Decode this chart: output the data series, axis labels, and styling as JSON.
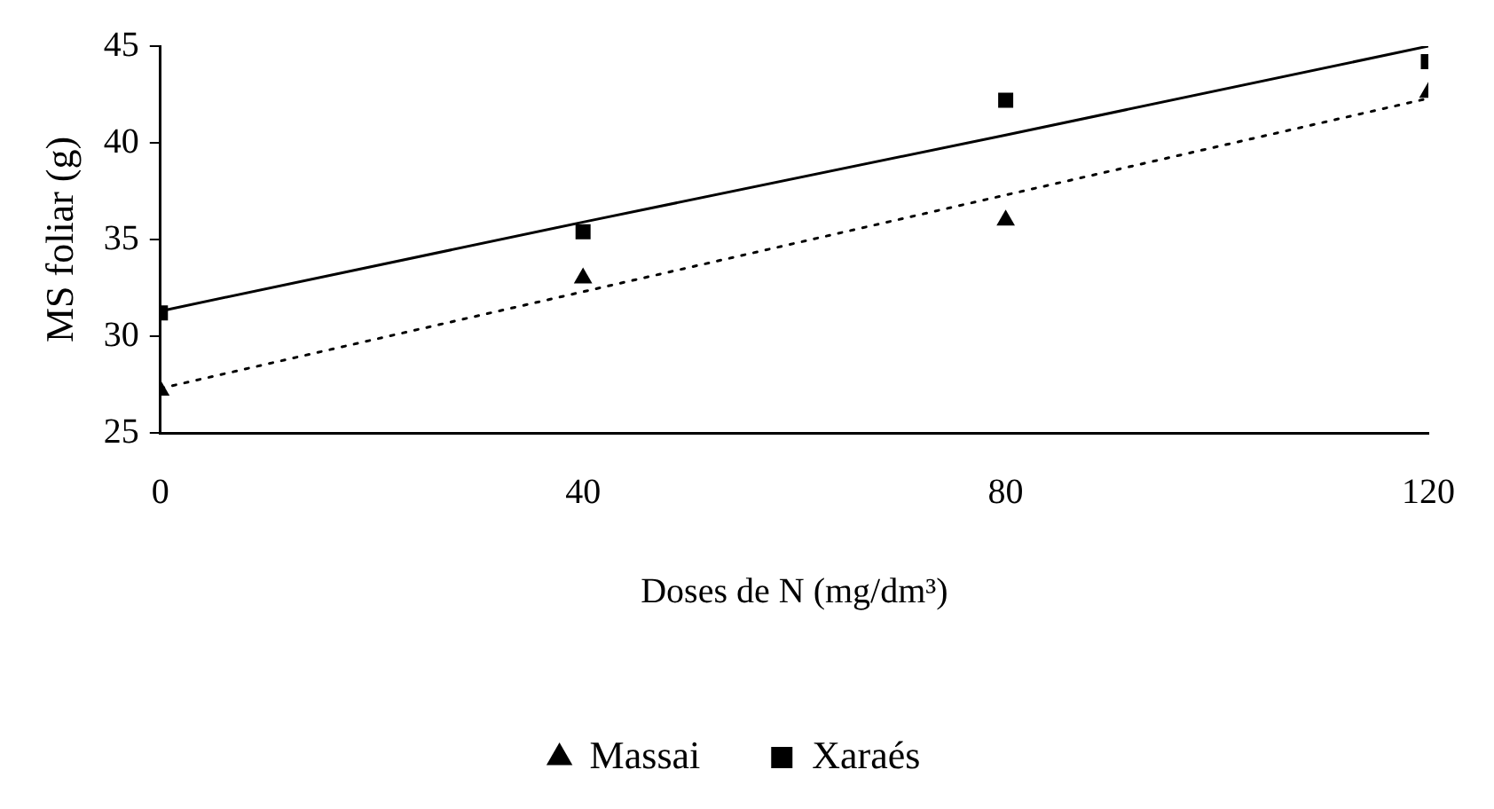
{
  "chart_data": {
    "type": "scatter",
    "xlabel": "Doses de N (mg/dm³)",
    "ylabel": "MS foliar (g)",
    "x": [
      0,
      40,
      80,
      120
    ],
    "xlim": [
      0,
      120
    ],
    "xticks": [
      0,
      40,
      80,
      120
    ],
    "ylim": [
      25,
      45
    ],
    "yticks": [
      25,
      30,
      35,
      40,
      45
    ],
    "grid": false,
    "legend": "bottom",
    "series": [
      {
        "name": "Massai",
        "type": "scatter",
        "marker": "triangle",
        "color": "#000000",
        "values": [
          27.2,
          33.0,
          36.0,
          42.6
        ]
      },
      {
        "name": "Xaraés",
        "type": "scatter",
        "marker": "square",
        "color": "#000000",
        "values": [
          31.2,
          35.4,
          42.2,
          44.2
        ]
      },
      {
        "type": "line",
        "marker": "none",
        "line_style": "dotted",
        "color": "#000000",
        "values": [
          27.3,
          32.3,
          37.3,
          42.3
        ]
      },
      {
        "type": "line",
        "marker": "none",
        "line_style": "solid",
        "color": "#000000",
        "values": [
          31.3,
          35.9,
          40.4,
          45.0
        ]
      }
    ]
  }
}
